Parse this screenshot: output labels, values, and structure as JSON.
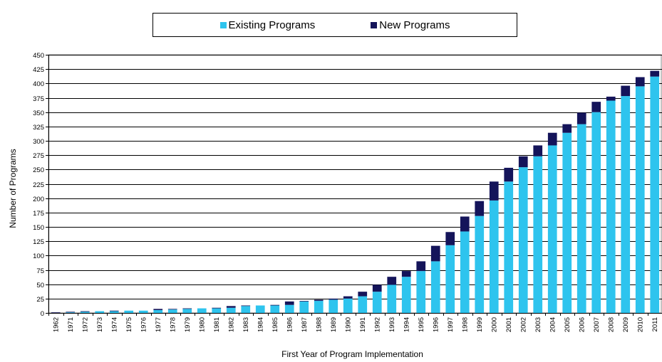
{
  "chart_data": {
    "type": "bar",
    "stacked": true,
    "xlabel": "First Year of Program Implementation",
    "ylabel": "Number of Programs",
    "ylim": [
      0,
      450
    ],
    "yticks": [
      0,
      25,
      50,
      75,
      100,
      125,
      150,
      175,
      200,
      225,
      250,
      275,
      300,
      325,
      350,
      375,
      400,
      425,
      450
    ],
    "grid": true,
    "legend_position": "top",
    "categories": [
      "1962",
      "1971",
      "1972",
      "1973",
      "1974",
      "1975",
      "1976",
      "1977",
      "1978",
      "1979",
      "1980",
      "1981",
      "1982",
      "1983",
      "1984",
      "1985",
      "1986",
      "1987",
      "1988",
      "1989",
      "1990",
      "1991",
      "1992",
      "1993",
      "1994",
      "1995",
      "1996",
      "1997",
      "1998",
      "1999",
      "2000",
      "2001",
      "2002",
      "2003",
      "2004",
      "2005",
      "2006",
      "2007",
      "2008",
      "2009",
      "2010",
      "2011"
    ],
    "series": [
      {
        "name": "Existing Programs",
        "color": "#2ec4ee",
        "values": [
          0,
          1,
          2,
          3,
          3,
          4,
          4,
          5,
          6,
          7,
          8,
          8,
          9,
          12,
          13,
          13,
          14,
          20,
          21,
          23,
          25,
          29,
          37,
          49,
          63,
          73,
          90,
          118,
          142,
          169,
          196,
          229,
          254,
          273,
          292,
          314,
          329,
          350,
          370,
          378,
          395,
          412
        ]
      },
      {
        "name": "New Programs",
        "color": "#14145a",
        "values": [
          1,
          1,
          1,
          0,
          1,
          0,
          0,
          2,
          1,
          1,
          0,
          1,
          3,
          1,
          0,
          1,
          6,
          1,
          2,
          2,
          4,
          8,
          12,
          14,
          10,
          17,
          27,
          23,
          26,
          26,
          33,
          24,
          19,
          19,
          22,
          15,
          20,
          18,
          7,
          18,
          16,
          10
        ]
      }
    ]
  }
}
